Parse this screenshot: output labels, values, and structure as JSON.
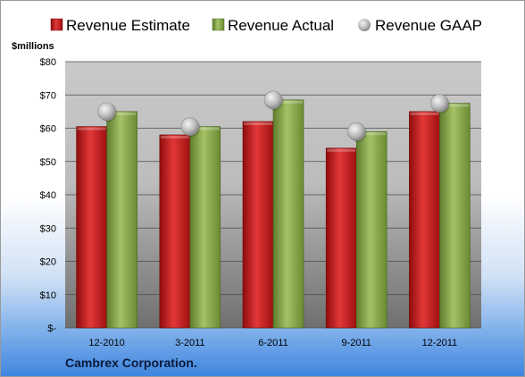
{
  "company": "Cambrex Corporation.",
  "chart_data": {
    "type": "bar",
    "unit_label": "$millions",
    "categories": [
      "12-2010",
      "3-2011",
      "6-2011",
      "9-2011",
      "12-2011"
    ],
    "series": [
      {
        "name": "Revenue Estimate",
        "kind": "bar",
        "color": "#c81e1e",
        "values": [
          60.5,
          58.0,
          62.0,
          54.0,
          65.0
        ]
      },
      {
        "name": "Revenue Actual",
        "kind": "bar",
        "color": "#8aab4c",
        "values": [
          65.0,
          60.5,
          68.5,
          59.0,
          67.5
        ]
      },
      {
        "name": "Revenue GAAP",
        "kind": "marker",
        "color": "#b4b4b4",
        "values": [
          65.0,
          60.5,
          68.5,
          59.0,
          67.5
        ]
      }
    ],
    "ylim": [
      0,
      80
    ],
    "yticks": [
      0,
      10,
      20,
      30,
      40,
      50,
      60,
      70,
      80
    ],
    "ytick_labels": [
      "$-",
      "$10",
      "$20",
      "$30",
      "$40",
      "$50",
      "$60",
      "$70",
      "$80"
    ],
    "grid": true,
    "legend_position": "top"
  }
}
